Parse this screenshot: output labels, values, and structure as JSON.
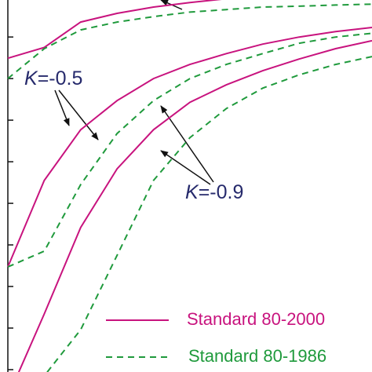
{
  "chart_data": {
    "type": "line",
    "xlim": [
      0,
      10
    ],
    "ylim": [
      0,
      8.89
    ],
    "yticks": [
      0,
      1,
      2,
      3,
      4,
      5,
      6,
      7,
      8
    ],
    "annotations": [
      "K=-0.5",
      "K=-0.9"
    ],
    "series": [
      {
        "name": "Standard 80-2000",
        "color": "#c8137e",
        "dashed": false,
        "curves": [
          {
            "x": [
              0,
              1,
              2,
              3,
              4,
              5,
              6
            ],
            "y": [
              7.49,
              7.75,
              8.36,
              8.57,
              8.72,
              8.83,
              8.92
            ]
          },
          {
            "x": [
              0,
              1,
              2,
              3,
              4,
              5,
              6,
              7,
              8,
              9,
              10
            ],
            "y": [
              2.47,
              4.55,
              5.77,
              6.47,
              7.0,
              7.34,
              7.6,
              7.83,
              8.0,
              8.13,
              8.23
            ]
          },
          {
            "x": [
              0.3,
              1,
              2,
              3,
              4,
              5,
              6,
              7,
              8,
              9,
              10
            ],
            "y": [
              -0.06,
              1.34,
              3.42,
              4.83,
              5.77,
              6.43,
              6.85,
              7.19,
              7.47,
              7.72,
              7.91
            ]
          }
        ]
      },
      {
        "name": "Standard 80-1986",
        "color": "#1f9a3c",
        "dashed": true,
        "curves": [
          {
            "x": [
              0,
              1,
              2,
              3,
              4,
              5,
              6,
              7,
              8,
              9,
              10
            ],
            "y": [
              7.0,
              7.72,
              8.17,
              8.36,
              8.49,
              8.6,
              8.66,
              8.72,
              8.74,
              8.77,
              8.79
            ]
          },
          {
            "x": [
              0,
              1,
              2,
              3,
              4,
              5,
              6,
              7,
              8,
              9,
              10
            ],
            "y": [
              2.47,
              2.85,
              4.45,
              5.68,
              6.47,
              7.0,
              7.34,
              7.6,
              7.85,
              8.0,
              8.09
            ]
          },
          {
            "x": [
              1.08,
              2,
              3,
              4,
              5,
              6,
              7,
              8,
              9,
              10
            ],
            "y": [
              -0.06,
              0.96,
              2.75,
              4.55,
              5.58,
              6.28,
              6.77,
              7.09,
              7.34,
              7.53
            ]
          }
        ]
      }
    ]
  }
}
